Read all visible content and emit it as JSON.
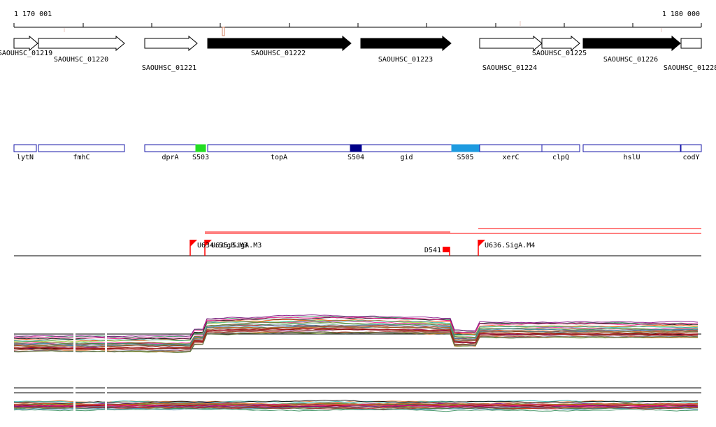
{
  "coordinates": {
    "start_label": "1 170 001",
    "end_label": "1 180 000"
  },
  "genes": [
    {
      "id": "SAOUHSC_01219",
      "strand": "+",
      "fill": "#ffffff"
    },
    {
      "id": "SAOUHSC_01220",
      "strand": "+",
      "fill": "#ffffff"
    },
    {
      "id": "SAOUHSC_01221",
      "strand": "+",
      "fill": "#ffffff"
    },
    {
      "id": "SAOUHSC_01222",
      "strand": "+",
      "fill": "#000000"
    },
    {
      "id": "SAOUHSC_01223",
      "strand": "+",
      "fill": "#000000"
    },
    {
      "id": "SAOUHSC_01224",
      "strand": "+",
      "fill": "#ffffff"
    },
    {
      "id": "SAOUHSC_01225",
      "strand": "+",
      "fill": "#ffffff"
    },
    {
      "id": "SAOUHSC_01226",
      "strand": "+",
      "fill": "#000000"
    },
    {
      "id": "SAOUHSC_01228",
      "strand": "+",
      "fill": "#ffffff"
    }
  ],
  "annotations": [
    {
      "name": "lytN",
      "color": "#ffffff"
    },
    {
      "name": "fmhC",
      "color": "#ffffff"
    },
    {
      "name": "dprA",
      "color": "#ffffff"
    },
    {
      "name": "S503",
      "color": "#22dd22"
    },
    {
      "name": "topA",
      "color": "#ffffff"
    },
    {
      "name": "S504",
      "color": "#000088"
    },
    {
      "name": "gid",
      "color": "#ffffff"
    },
    {
      "name": "S505",
      "color": "#1e9be0"
    },
    {
      "name": "xerC",
      "color": "#ffffff"
    },
    {
      "name": "clpQ",
      "color": "#ffffff"
    },
    {
      "name": "hslU",
      "color": "#ffffff"
    },
    {
      "name": "codY",
      "color": "#ffffff"
    }
  ],
  "features": [
    {
      "label": "U634.SigB.M3",
      "kind": "promoter"
    },
    {
      "label": "U635.SigA.M3",
      "kind": "promoter"
    },
    {
      "label": "D541",
      "kind": "terminator"
    },
    {
      "label": "U636.SigA.M4",
      "kind": "promoter"
    }
  ],
  "colors": {
    "annotation_border": "#1a1aaa",
    "feature_red": "#ff0000",
    "track_line": "#000000"
  },
  "expression_palette": [
    "#8b0000",
    "#b22222",
    "#556b2f",
    "#6b8e23",
    "#800080",
    "#d2691e",
    "#ff1493",
    "#2e8b57",
    "#8b4513",
    "#4682b4",
    "#9acd32",
    "#a52a2a",
    "#ff4500",
    "#20b2aa",
    "#708090",
    "#000000"
  ]
}
